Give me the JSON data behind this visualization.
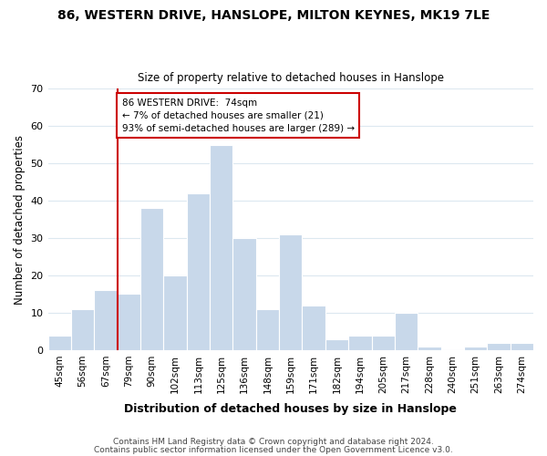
{
  "title": "86, WESTERN DRIVE, HANSLOPE, MILTON KEYNES, MK19 7LE",
  "subtitle": "Size of property relative to detached houses in Hanslope",
  "xlabel": "Distribution of detached houses by size in Hanslope",
  "ylabel": "Number of detached properties",
  "bar_color": "#c8d8ea",
  "bar_edge_color": "#ffffff",
  "categories": [
    "45sqm",
    "56sqm",
    "67sqm",
    "79sqm",
    "90sqm",
    "102sqm",
    "113sqm",
    "125sqm",
    "136sqm",
    "148sqm",
    "159sqm",
    "171sqm",
    "182sqm",
    "194sqm",
    "205sqm",
    "217sqm",
    "228sqm",
    "240sqm",
    "251sqm",
    "263sqm",
    "274sqm"
  ],
  "values": [
    4,
    11,
    16,
    15,
    38,
    20,
    42,
    55,
    30,
    11,
    31,
    12,
    3,
    4,
    4,
    10,
    1,
    0,
    1,
    2,
    2
  ],
  "ylim": [
    0,
    70
  ],
  "yticks": [
    0,
    10,
    20,
    30,
    40,
    50,
    60,
    70
  ],
  "vline_color": "#cc0000",
  "annotation_text": "86 WESTERN DRIVE:  74sqm\n← 7% of detached houses are smaller (21)\n93% of semi-detached houses are larger (289) →",
  "annotation_box_color": "#ffffff",
  "annotation_box_edge_color": "#cc0000",
  "footer1": "Contains HM Land Registry data © Crown copyright and database right 2024.",
  "footer2": "Contains public sector information licensed under the Open Government Licence v3.0.",
  "background_color": "#ffffff",
  "grid_color": "#dce8f0"
}
